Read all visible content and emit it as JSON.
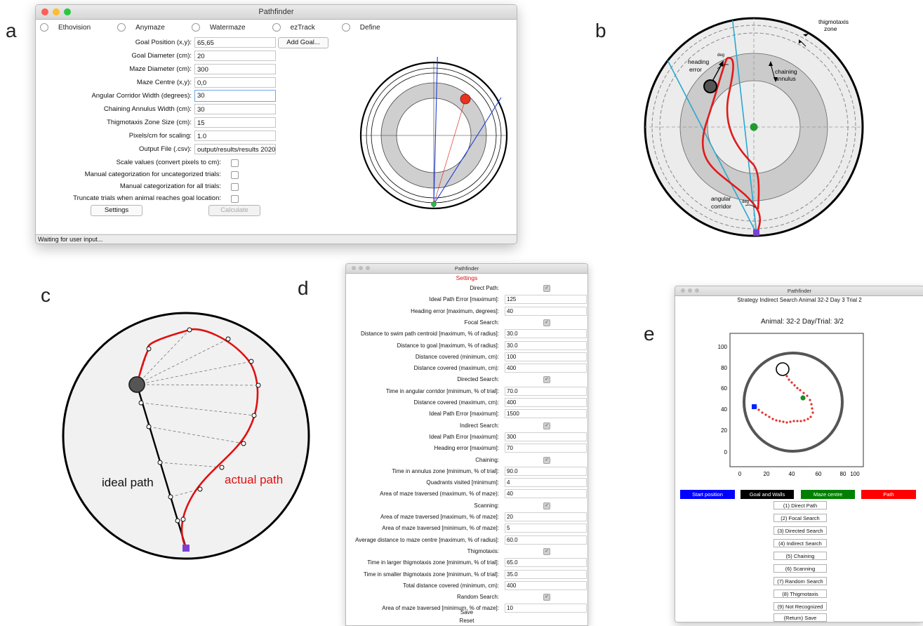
{
  "labels": {
    "a": "a",
    "b": "b",
    "c": "c",
    "d": "d",
    "e": "e"
  },
  "panel_a": {
    "title": "Pathfinder",
    "radios": [
      "Ethovision",
      "Anymaze",
      "Watermaze",
      "ezTrack",
      "Define"
    ],
    "fields": [
      {
        "label": "Goal Position (x,y):",
        "value": "65,65"
      },
      {
        "label": "Goal Diameter (cm):",
        "value": "20"
      },
      {
        "label": "Maze Diameter (cm):",
        "value": "300"
      },
      {
        "label": "Maze Centre (x,y):",
        "value": "0,0"
      },
      {
        "label": "Angular Corridor Width (degrees):",
        "value": "30"
      },
      {
        "label": "Chaining Annulus Width (cm):",
        "value": "30"
      },
      {
        "label": "Thigmotaxis Zone Size (cm):",
        "value": "15"
      },
      {
        "label": "Pixels/cm for scaling:",
        "value": "1.0"
      },
      {
        "label": "Output File (.csv):",
        "value": "output/results/results 2020"
      }
    ],
    "add_goal": "Add Goal...",
    "checks": [
      "Scale values (convert pixels to cm):",
      "Manual categorization for uncategorized trials:",
      "Manual categorization for all trials:",
      "Truncate trials when animal reaches goal location:"
    ],
    "settings_btn": "Settings",
    "calculate_btn": "Calculate",
    "status": "Waiting for user input..."
  },
  "panel_b": {
    "thigmotaxis": [
      "thigmotaxis",
      "zone"
    ],
    "heading": [
      "heading",
      "error"
    ],
    "chaining": [
      "chaining",
      "annulus"
    ],
    "corridor": [
      "angular",
      "corridor"
    ],
    "deg": "deg"
  },
  "panel_c": {
    "ideal": "ideal path",
    "actual": "actual path"
  },
  "panel_d": {
    "title": "Pathfinder",
    "heading": "Settings",
    "rows": [
      {
        "label": "Direct Path:",
        "type": "check"
      },
      {
        "label": "Ideal Path Error [maximum]:",
        "value": "125"
      },
      {
        "label": "Heading error [maximum, degrees]:",
        "value": "40"
      },
      {
        "label": "Focal Search:",
        "type": "check"
      },
      {
        "label": "Distance to swim path centroid [maximum, % of radius]:",
        "value": "30.0"
      },
      {
        "label": "Distance to goal [maximum, % of radius]:",
        "value": "30.0"
      },
      {
        "label": "Distance covered (minimum, cm):",
        "value": "100"
      },
      {
        "label": "Distance covered (maximum, cm):",
        "value": "400"
      },
      {
        "label": "Directed Search:",
        "type": "check"
      },
      {
        "label": "Time in angular corridor [minimum, % of trial]:",
        "value": "70.0"
      },
      {
        "label": "Distance covered (maximum, cm):",
        "value": "400"
      },
      {
        "label": "Ideal Path Error [maximum]:",
        "value": "1500"
      },
      {
        "label": "Indirect Search:",
        "type": "check"
      },
      {
        "label": "Ideal Path Error [maximum]:",
        "value": "300"
      },
      {
        "label": "Heading error [maximum]:",
        "value": "70"
      },
      {
        "label": "Chaining:",
        "type": "check"
      },
      {
        "label": "Time in annulus zone [minimum, % of trial]:",
        "value": "90.0"
      },
      {
        "label": "Quadrants visited [minimum]:",
        "value": "4"
      },
      {
        "label": "Area of maze traversed (maximum, % of maze):",
        "value": "40"
      },
      {
        "label": "Scanning:",
        "type": "check"
      },
      {
        "label": "Area of maze traversed [maximum, % of maze]:",
        "value": "20"
      },
      {
        "label": "Area of maze traversed [minimum, % of maze]:",
        "value": "5"
      },
      {
        "label": "Average distance to maze centre [maximum, % of radius]:",
        "value": "60.0"
      },
      {
        "label": "Thigmotaxis:",
        "type": "check"
      },
      {
        "label": "Time in larger thigmotaxis zone [minimum, % of trial]:",
        "value": "65.0"
      },
      {
        "label": "Time in smaller thigmotaxis zone [minimum, % of trial]:",
        "value": "35.0"
      },
      {
        "label": "Total distance covered (minimum, cm):",
        "value": "400"
      },
      {
        "label": "Random Search:",
        "type": "check"
      },
      {
        "label": "Area of maze traversed [minimum, % of maze]:",
        "value": "10"
      }
    ],
    "save": "Save",
    "reset": "Reset"
  },
  "panel_e": {
    "title": "Pathfinder",
    "subtitle": "Strategy Indirect Search Animal 32-2  Day 3 Trial 2",
    "plot_title": "Animal: 32-2  Day/Trial: 3/2",
    "legend": [
      {
        "label": "Start position",
        "color": "#0000ff"
      },
      {
        "label": "Goal and Walls",
        "color": "#000000"
      },
      {
        "label": "Maze centre",
        "color": "#008000"
      },
      {
        "label": "Path",
        "color": "#ff0000"
      }
    ],
    "buttons": [
      "(1) Direct Path",
      "(2) Focal Search",
      "(3) Directed Search",
      "(4) Indirect Search",
      "(5) Chaining",
      "(6) Scanning",
      "(7) Random Search",
      "(8) Thigmotaxis",
      "(9) Not Recognized",
      "(Return) Save"
    ],
    "yticks": [
      "100",
      "80",
      "60",
      "40",
      "20",
      "0"
    ],
    "xticks": [
      "0",
      "20",
      "40",
      "60",
      "80",
      "100"
    ]
  }
}
